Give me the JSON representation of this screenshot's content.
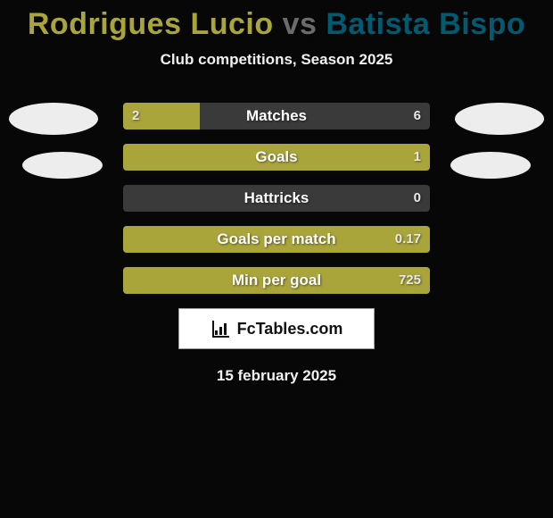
{
  "title": {
    "player1": "Rodrigues Lucio",
    "vs": "vs",
    "player2": "Batista Bispo",
    "color1": "#a9a53a",
    "vs_color": "#6b6b6b",
    "color2": "#015a70"
  },
  "subtitle": {
    "text": "Club competitions, Season 2025",
    "color": "#f0f0f0"
  },
  "background_color": "#070707",
  "heads": {
    "left_color": "#ededed",
    "right_color": "#ededed"
  },
  "bars": {
    "track_color": "#3b3a3a",
    "fill_color": "#a9a53a",
    "label_color": "#ffffff",
    "value_color": "#e8e8e8",
    "rows": [
      {
        "label": "Matches",
        "left_val": "2",
        "right_val": "6",
        "left_pct": 25,
        "right_pct": 0
      },
      {
        "label": "Goals",
        "left_val": "",
        "right_val": "1",
        "left_pct": 100,
        "right_pct": 0
      },
      {
        "label": "Hattricks",
        "left_val": "",
        "right_val": "0",
        "left_pct": 0,
        "right_pct": 0
      },
      {
        "label": "Goals per match",
        "left_val": "",
        "right_val": "0.17",
        "left_pct": 100,
        "right_pct": 0
      },
      {
        "label": "Min per goal",
        "left_val": "",
        "right_val": "725",
        "left_pct": 100,
        "right_pct": 0
      }
    ]
  },
  "logo": {
    "text": "FcTables.com",
    "text_color": "#111111",
    "icon_color": "#111111",
    "bg_color": "#ffffff",
    "border_color": "#9a9a9a"
  },
  "footer": {
    "date": "15 february 2025",
    "color": "#f0f0f0"
  }
}
